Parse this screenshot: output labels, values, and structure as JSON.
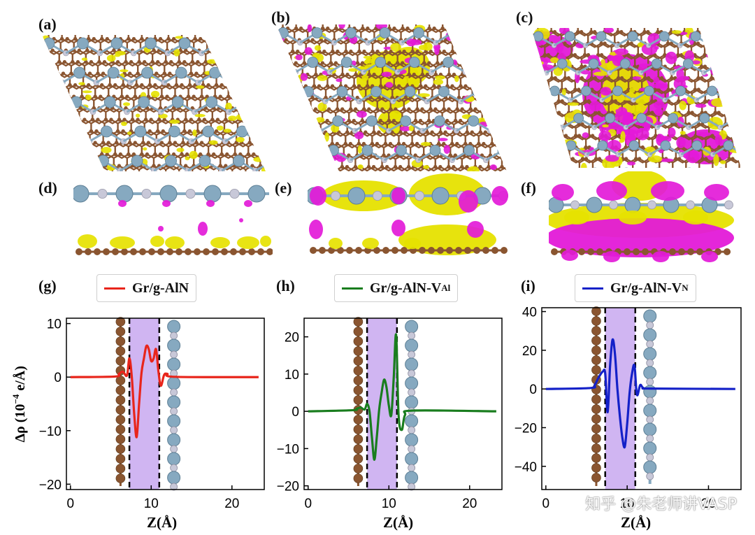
{
  "panel_labels": {
    "a": "(a)",
    "b": "(b)",
    "c": "(c)",
    "d": "(d)",
    "e": "(e)",
    "f": "(f)",
    "g": "(g)",
    "h": "(h)",
    "i": "(i)"
  },
  "colors": {
    "yellow_isosurface": "#e6e200",
    "magenta_isosurface": "#e31ad8",
    "carbon_atom": "#8a5530",
    "aluminum_atom": "#86a9c0",
    "nitrogen_atom": "#c8c8d8",
    "interface_shade": "#c8a8f0"
  },
  "ylabel": "Δρ (10",
  "ylabel_exp": "−4",
  "ylabel_unit": " e/Å)",
  "xlabel": "Z(Å)",
  "watermark": "知乎 @朱老师讲VASP",
  "chart_data": [
    {
      "type": "line",
      "panel": "(g)",
      "legend": "Gr/g-AlN",
      "legend_sub": "",
      "color": "#e8251b",
      "xlim": [
        -0.5,
        24
      ],
      "ylim": [
        -21,
        11
      ],
      "xticks": [
        0,
        10,
        20
      ],
      "yticks": [
        -20,
        -10,
        0,
        10
      ],
      "interface_span": [
        7.3,
        11.0
      ],
      "x": [
        0,
        5.5,
        6.0,
        6.5,
        7.0,
        7.3,
        7.6,
        7.9,
        8.2,
        8.5,
        8.8,
        9.1,
        9.4,
        9.7,
        10.0,
        10.3,
        10.6,
        10.9,
        11.2,
        11.6,
        12.0,
        13.0,
        23.3
      ],
      "y": [
        0,
        0.1,
        0.6,
        1.0,
        0.3,
        3.5,
        0.0,
        -7.0,
        -11.2,
        -5.0,
        0.8,
        3.5,
        5.8,
        5.2,
        3.0,
        3.5,
        5.2,
        1.0,
        -1.6,
        0.4,
        0.6,
        0.05,
        0
      ]
    },
    {
      "type": "line",
      "panel": "(h)",
      "legend": "Gr/g-AlN-V",
      "legend_sub": "Al",
      "color": "#197d1e",
      "xlim": [
        -0.5,
        24
      ],
      "ylim": [
        -21,
        25
      ],
      "xticks": [
        0,
        10,
        20
      ],
      "yticks": [
        -20,
        -10,
        0,
        10,
        20
      ],
      "interface_span": [
        7.3,
        11.0
      ],
      "x": [
        0,
        5.5,
        6.0,
        6.5,
        7.0,
        7.3,
        7.6,
        7.9,
        8.2,
        8.5,
        8.8,
        9.1,
        9.4,
        9.7,
        10.0,
        10.3,
        10.6,
        10.9,
        11.2,
        11.6,
        12.0,
        13.0,
        23.3
      ],
      "y": [
        0,
        0.3,
        0.7,
        1.0,
        0.5,
        2.0,
        0.0,
        -7.0,
        -13.0,
        -7.0,
        0.5,
        5.0,
        8.5,
        6.5,
        1.5,
        -1.0,
        9.0,
        20.5,
        -1.0,
        -5.0,
        -1.0,
        0.2,
        0
      ]
    },
    {
      "type": "line",
      "panel": "(i)",
      "legend": "Gr/g-AlN-V",
      "legend_sub": "N",
      "color": "#1421c8",
      "xlim": [
        -0.5,
        24
      ],
      "ylim": [
        -52,
        42
      ],
      "xticks": [
        0,
        10,
        20
      ],
      "yticks": [
        -40,
        -20,
        0,
        20,
        40
      ],
      "interface_span": [
        7.3,
        11.0
      ],
      "x": [
        0,
        5.5,
        6.0,
        6.5,
        7.0,
        7.3,
        7.6,
        7.9,
        8.2,
        8.5,
        8.8,
        9.1,
        9.4,
        9.7,
        10.0,
        10.3,
        10.6,
        10.9,
        11.2,
        11.6,
        12.0,
        13.0,
        23.3
      ],
      "y": [
        0,
        0.5,
        2.0,
        6.0,
        9.0,
        8.0,
        -12.0,
        12.0,
        25.5,
        18.0,
        0.0,
        -14.0,
        -25.0,
        -30.0,
        -18.0,
        -2.0,
        8.0,
        12.0,
        -3.0,
        2.0,
        0.5,
        0.2,
        0
      ]
    }
  ]
}
